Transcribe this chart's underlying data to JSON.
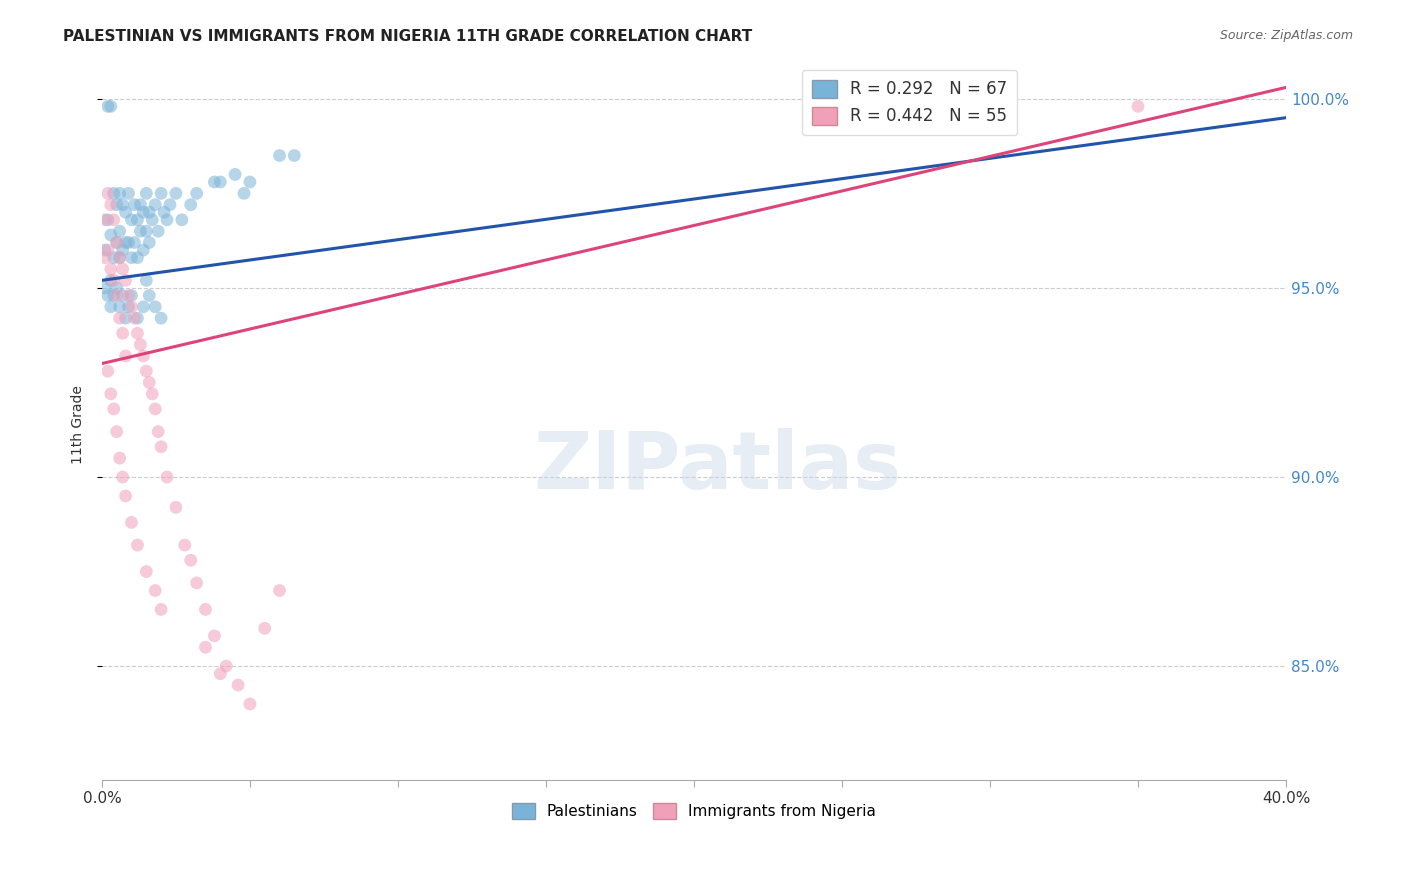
{
  "title": "PALESTINIAN VS IMMIGRANTS FROM NIGERIA 11TH GRADE CORRELATION CHART",
  "source": "Source: ZipAtlas.com",
  "ylabel": "11th Grade",
  "watermark_text": "ZIPatlas",
  "legend_line1": "R = 0.292   N = 67",
  "legend_line2": "R = 0.442   N = 55",
  "legend_label_palestinians": "Palestinians",
  "legend_label_nigeria": "Immigrants from Nigeria",
  "xlim": [
    0.0,
    0.4
  ],
  "ylim": [
    0.82,
    1.008
  ],
  "yticks": [
    0.85,
    0.9,
    0.95,
    1.0
  ],
  "ytick_labels": [
    "85.0%",
    "90.0%",
    "95.0%",
    "100.0%"
  ],
  "grid_color": "#cccccc",
  "blue_line_x": [
    0.0,
    0.4
  ],
  "blue_line_y": [
    0.952,
    0.995
  ],
  "pink_line_x": [
    0.0,
    0.4
  ],
  "pink_line_y": [
    0.93,
    1.003
  ],
  "scatter_color_blue": "#7ab3d8",
  "scatter_color_pink": "#f0a0b8",
  "line_color_blue": "#2255aa",
  "line_color_pink": "#dd4477",
  "marker_size": 85,
  "marker_alpha": 0.55,
  "background_color": "#ffffff",
  "right_axis_color": "#4488cc",
  "blue_scatter_x": [
    0.001,
    0.002,
    0.002,
    0.003,
    0.003,
    0.004,
    0.004,
    0.005,
    0.005,
    0.006,
    0.006,
    0.006,
    0.007,
    0.007,
    0.008,
    0.008,
    0.009,
    0.009,
    0.01,
    0.01,
    0.011,
    0.011,
    0.012,
    0.012,
    0.013,
    0.013,
    0.014,
    0.014,
    0.015,
    0.015,
    0.016,
    0.016,
    0.017,
    0.018,
    0.019,
    0.02,
    0.021,
    0.022,
    0.023,
    0.025,
    0.027,
    0.03,
    0.032,
    0.038,
    0.04,
    0.045,
    0.048,
    0.05,
    0.06,
    0.065,
    0.001,
    0.002,
    0.003,
    0.003,
    0.004,
    0.005,
    0.006,
    0.007,
    0.008,
    0.009,
    0.01,
    0.012,
    0.014,
    0.015,
    0.016,
    0.018,
    0.02
  ],
  "blue_scatter_y": [
    0.96,
    0.998,
    0.968,
    0.998,
    0.964,
    0.975,
    0.958,
    0.972,
    0.962,
    0.975,
    0.965,
    0.958,
    0.972,
    0.96,
    0.97,
    0.962,
    0.975,
    0.962,
    0.968,
    0.958,
    0.972,
    0.962,
    0.968,
    0.958,
    0.972,
    0.965,
    0.97,
    0.96,
    0.975,
    0.965,
    0.97,
    0.962,
    0.968,
    0.972,
    0.965,
    0.975,
    0.97,
    0.968,
    0.972,
    0.975,
    0.968,
    0.972,
    0.975,
    0.978,
    0.978,
    0.98,
    0.975,
    0.978,
    0.985,
    0.985,
    0.95,
    0.948,
    0.952,
    0.945,
    0.948,
    0.95,
    0.945,
    0.948,
    0.942,
    0.945,
    0.948,
    0.942,
    0.945,
    0.952,
    0.948,
    0.945,
    0.942
  ],
  "pink_scatter_x": [
    0.001,
    0.001,
    0.002,
    0.002,
    0.003,
    0.003,
    0.004,
    0.004,
    0.005,
    0.005,
    0.006,
    0.006,
    0.007,
    0.007,
    0.008,
    0.008,
    0.009,
    0.01,
    0.011,
    0.012,
    0.013,
    0.014,
    0.015,
    0.016,
    0.017,
    0.018,
    0.019,
    0.02,
    0.022,
    0.025,
    0.028,
    0.03,
    0.032,
    0.035,
    0.038,
    0.042,
    0.046,
    0.05,
    0.055,
    0.06,
    0.002,
    0.003,
    0.004,
    0.005,
    0.006,
    0.007,
    0.008,
    0.01,
    0.012,
    0.015,
    0.018,
    0.02,
    0.035,
    0.04,
    0.35
  ],
  "pink_scatter_y": [
    0.968,
    0.958,
    0.975,
    0.96,
    0.972,
    0.955,
    0.968,
    0.952,
    0.962,
    0.948,
    0.958,
    0.942,
    0.955,
    0.938,
    0.952,
    0.932,
    0.948,
    0.945,
    0.942,
    0.938,
    0.935,
    0.932,
    0.928,
    0.925,
    0.922,
    0.918,
    0.912,
    0.908,
    0.9,
    0.892,
    0.882,
    0.878,
    0.872,
    0.865,
    0.858,
    0.85,
    0.845,
    0.84,
    0.86,
    0.87,
    0.928,
    0.922,
    0.918,
    0.912,
    0.905,
    0.9,
    0.895,
    0.888,
    0.882,
    0.875,
    0.87,
    0.865,
    0.855,
    0.848,
    0.998
  ]
}
